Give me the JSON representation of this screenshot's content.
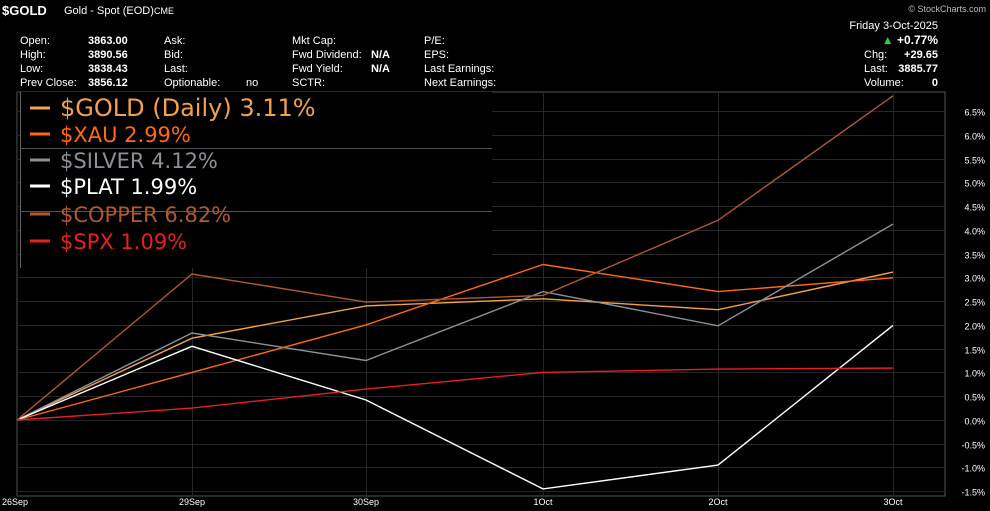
{
  "header": {
    "symbol": "$GOLD",
    "description": "Gold - Spot (EOD)",
    "exchange": "CME",
    "brand": "© StockCharts.com",
    "date": "Friday  3-Oct-2025",
    "change_pct": "+0.77%",
    "chg_label": "Chg:",
    "chg_value": "+29.65",
    "last_label": "Last:",
    "last_value": "3885.77",
    "volume_label": "Volume:",
    "volume_value": "0",
    "quote": {
      "open_label": "Open:",
      "open": "3863.00",
      "high_label": "High:",
      "high": "3890.56",
      "low_label": "Low:",
      "low": "3838.43",
      "prev_label": "Prev Close:",
      "prev": "3856.12",
      "ask_label": "Ask:",
      "bid_label": "Bid:",
      "lastq_label": "Last:",
      "optionable_label": "Optionable:",
      "optionable": "no",
      "mktcap_label": "Mkt Cap:",
      "fwddiv_label": "Fwd Dividend:",
      "fwddiv": "N/A",
      "fwdyield_label": "Fwd Yield:",
      "fwdyield": "N/A",
      "sctr_label": "SCTR:",
      "pe_label": "P/E:",
      "eps_label": "EPS:",
      "lastearn_label": "Last Earnings:",
      "nextearn_label": "Next Earnings:"
    }
  },
  "chart_data": {
    "type": "line",
    "x": [
      "26Sep",
      "29Sep",
      "30Sep",
      "1Oct",
      "2Oct",
      "3Oct"
    ],
    "ylim": [
      -1.6,
      6.9
    ],
    "yticks": [
      -1.5,
      -1.0,
      -0.5,
      0.0,
      0.5,
      1.0,
      1.5,
      2.0,
      2.5,
      3.0,
      3.5,
      4.0,
      4.5,
      5.0,
      5.5,
      6.0,
      6.5
    ],
    "ytick_labels": [
      "-1.5%",
      "-1.0%",
      "-0.5%",
      "0.0%",
      "0.5%",
      "1.0%",
      "1.5%",
      "2.0%",
      "2.5%",
      "3.0%",
      "3.5%",
      "4.0%",
      "4.5%",
      "5.0%",
      "5.5%",
      "6.0%",
      "6.5%"
    ],
    "grid": true,
    "legend_position": "top-left",
    "series": [
      {
        "name": "$GOLD (Daily) 3.11%",
        "color": "#f5a04a",
        "values": [
          0,
          1.72,
          2.4,
          2.55,
          2.32,
          3.11
        ]
      },
      {
        "name": "$XAU 2.99%",
        "color": "#ff6a10",
        "values": [
          0,
          1.0,
          2.0,
          3.27,
          2.7,
          2.99
        ]
      },
      {
        "name": "$SILVER 4.12%",
        "color": "#8a9298",
        "values": [
          0,
          1.83,
          1.25,
          2.7,
          1.98,
          4.12
        ]
      },
      {
        "name": "$PLAT 1.99%",
        "color": "#ffffff",
        "values": [
          0,
          1.55,
          0.42,
          -1.45,
          -0.95,
          1.99
        ]
      },
      {
        "name": "$COPPER 6.82%",
        "color": "#b05a2c",
        "values": [
          0,
          3.07,
          2.48,
          2.62,
          4.2,
          6.82
        ]
      },
      {
        "name": "$SPX 1.09%",
        "color": "#e8201c",
        "values": [
          0,
          0.25,
          0.65,
          1.0,
          1.07,
          1.09
        ]
      }
    ]
  }
}
